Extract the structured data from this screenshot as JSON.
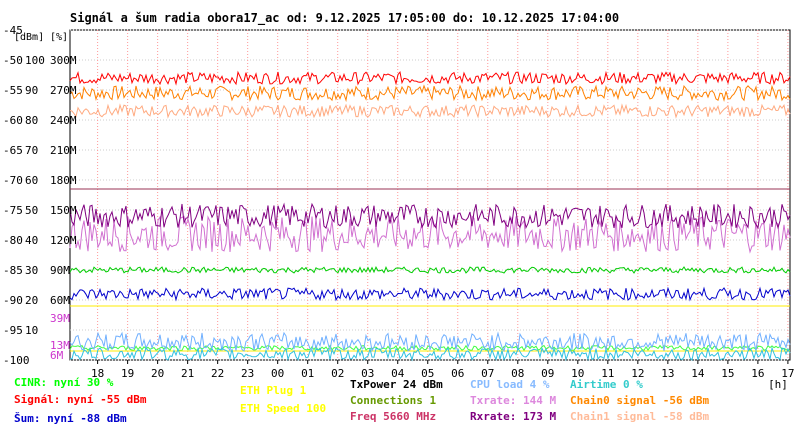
{
  "title": "Signál a šum radia obora17_ac od: 9.12.2025 17:05:00 do: 10.12.2025 17:04:00",
  "unit_dbm": "[dBm]",
  "unit_pct": "[%]",
  "unit_hours": "[h]",
  "chart_data": {
    "type": "line",
    "title": "Signál a šum radia obora17_ac od: 9.12.2025 17:05:00 do: 10.12.2025 17:04:00",
    "xlabel": "[h]",
    "ylabel": "[dBm] [%]",
    "x_ticks": [
      "18",
      "19",
      "20",
      "21",
      "22",
      "23",
      "00",
      "01",
      "02",
      "03",
      "04",
      "05",
      "06",
      "07",
      "08",
      "09",
      "10",
      "11",
      "12",
      "13",
      "14",
      "15",
      "16",
      "17"
    ],
    "y_ticks_dbm": [
      "-45",
      "-50",
      "-55",
      "-60",
      "-65",
      "-70",
      "-75",
      "-80",
      "-85",
      "-90",
      "-95",
      "-100"
    ],
    "y_ticks_pct": [
      "100",
      "90",
      "80",
      "70",
      "60",
      "50",
      "40",
      "30",
      "20",
      "10"
    ],
    "y_ticks_rate": [
      "300M",
      "270M",
      "240M",
      "210M",
      "180M",
      "150M",
      "120M",
      "90M",
      "60M",
      "39M",
      "13M",
      "6M"
    ],
    "ylim_dbm": [
      -100,
      -45
    ],
    "xlim_hours": [
      17.08,
      41.07
    ],
    "grid": true,
    "series": [
      {
        "name": "Chain0 signal",
        "color": "#ff8000",
        "level": -55.5,
        "noise": 1.2
      },
      {
        "name": "Signál",
        "color": "#ff0000",
        "level": -53.0,
        "noise": 1.0
      },
      {
        "name": "Chain1 signal",
        "color": "#ffaa80",
        "level": -58.5,
        "noise": 1.0
      },
      {
        "name": "Txrate",
        "color": "#d070d0",
        "level": -79.0,
        "noise": 3.0
      },
      {
        "name": "Rxrate",
        "color": "#800080",
        "level": -76.0,
        "noise": 2.0
      },
      {
        "name": "Freq",
        "color": "#993355",
        "level": -71.5,
        "noise": 0
      },
      {
        "name": "Connections",
        "color": "#00cc00",
        "level": -85.0,
        "noise": 0.5
      },
      {
        "name": "Šum",
        "color": "#0000cc",
        "level": -89.0,
        "noise": 1.0
      },
      {
        "name": "CINR",
        "color": "#40ff40",
        "level": -98.0,
        "noise": 0.4
      },
      {
        "name": "ETH Plug",
        "color": "#ffee00",
        "level": -91.0,
        "noise": 0
      },
      {
        "name": "ETH Speed",
        "color": "#ffee00",
        "level": -98.5,
        "noise": 0
      },
      {
        "name": "CPU load",
        "color": "#70b0ff",
        "level": -97.0,
        "noise": 1.5
      },
      {
        "name": "Airtime",
        "color": "#30c0e0",
        "level": -99.0,
        "noise": 1.0
      }
    ]
  },
  "legend": [
    {
      "text": "CINR: nyní 30 %",
      "color": "#00ff00"
    },
    {
      "text": "Signál: nyní -55 dBm",
      "color": "#ff0000"
    },
    {
      "text": "Šum: nyní -88 dBm",
      "color": "#0000cc"
    },
    {
      "text": "ETH Plug 1",
      "color": "#ffff00"
    },
    {
      "text": "ETH Speed 100",
      "color": "#ffff00"
    },
    {
      "text": "TxPower 24 dBm",
      "color": "#000000"
    },
    {
      "text": "Connections 1",
      "color": "#669900"
    },
    {
      "text": "Freq 5660 MHz",
      "color": "#cc3366"
    },
    {
      "text": "CPU load 4 %",
      "color": "#88bbff"
    },
    {
      "text": "Txrate: 144 M",
      "color": "#dd88dd"
    },
    {
      "text": "Rxrate: 173 M",
      "color": "#800080"
    },
    {
      "text": "Airtime 0 %",
      "color": "#33cccc"
    },
    {
      "text": "Chain0 signal -56 dBm",
      "color": "#ff8800"
    },
    {
      "text": "Chain1 signal -58 dBm",
      "color": "#ffbb99"
    }
  ]
}
